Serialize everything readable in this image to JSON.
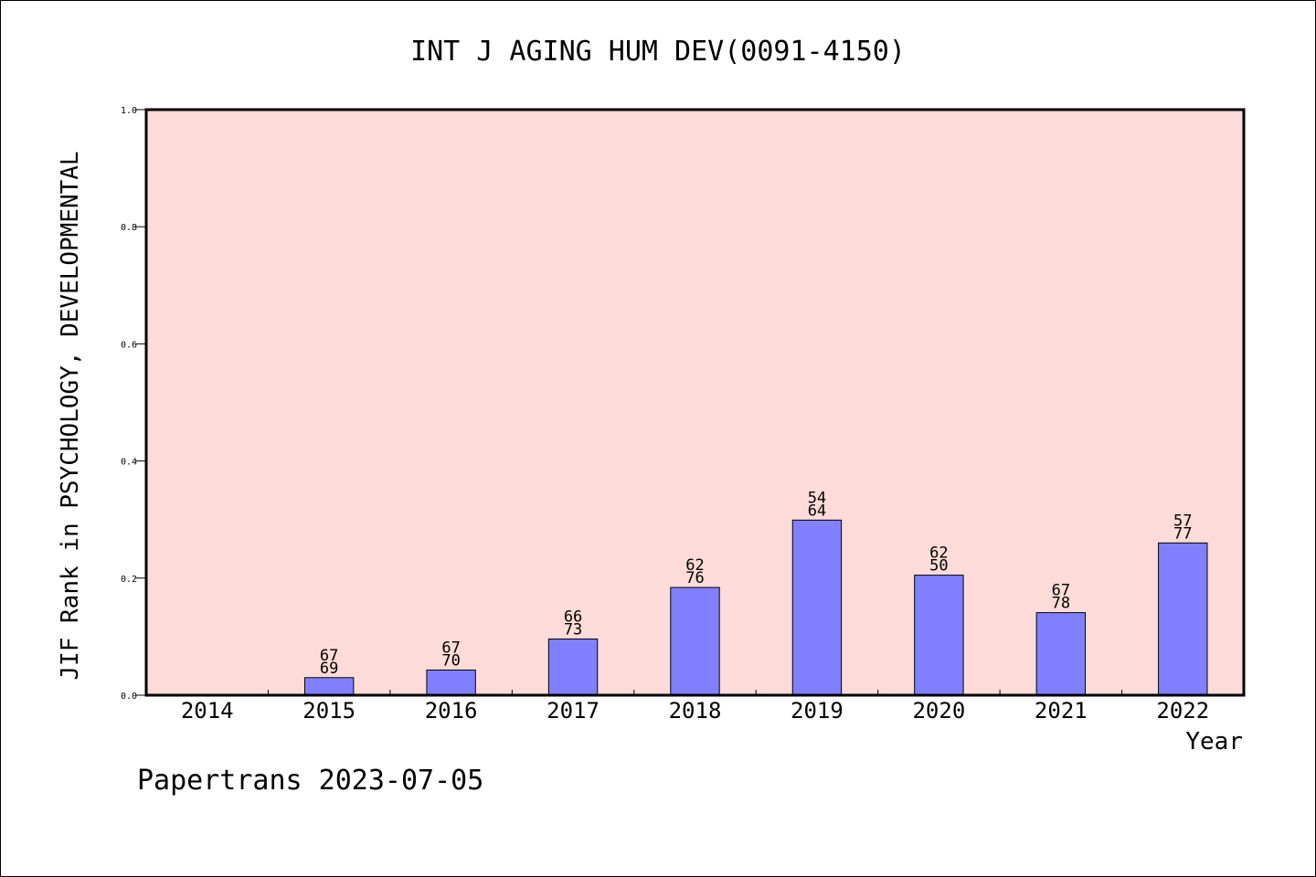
{
  "chart_data": {
    "type": "bar",
    "title": "INT J AGING HUM DEV(0091-4150)",
    "xlabel": "Year",
    "ylabel": "JIF Rank in PSYCHOLOGY, DEVELOPMENTAL",
    "ylim": [
      0,
      1.0
    ],
    "yticks": [
      "0.0",
      "0.2",
      "0.4",
      "0.6",
      "0.8",
      "1.0"
    ],
    "categories": [
      "2014",
      "2015",
      "2016",
      "2017",
      "2018",
      "2019",
      "2020",
      "2021",
      "2022"
    ],
    "values": [
      null,
      0.03,
      0.043,
      0.096,
      0.184,
      0.299,
      0.205,
      0.141,
      0.26
    ],
    "rank_labels": [
      null,
      [
        "67",
        "69"
      ],
      [
        "67",
        "70"
      ],
      [
        "66",
        "73"
      ],
      [
        "62",
        "76"
      ],
      [
        "54",
        "64"
      ],
      [
        "62",
        "50"
      ],
      [
        "67",
        "78"
      ],
      [
        "57",
        "77"
      ]
    ],
    "grid": false,
    "colors": {
      "plot_background": "#fddbd8",
      "bar_fill": "#8080ff",
      "bar_stroke": "#000000"
    }
  },
  "footer": {
    "text": "Papertrans 2023-07-05"
  }
}
